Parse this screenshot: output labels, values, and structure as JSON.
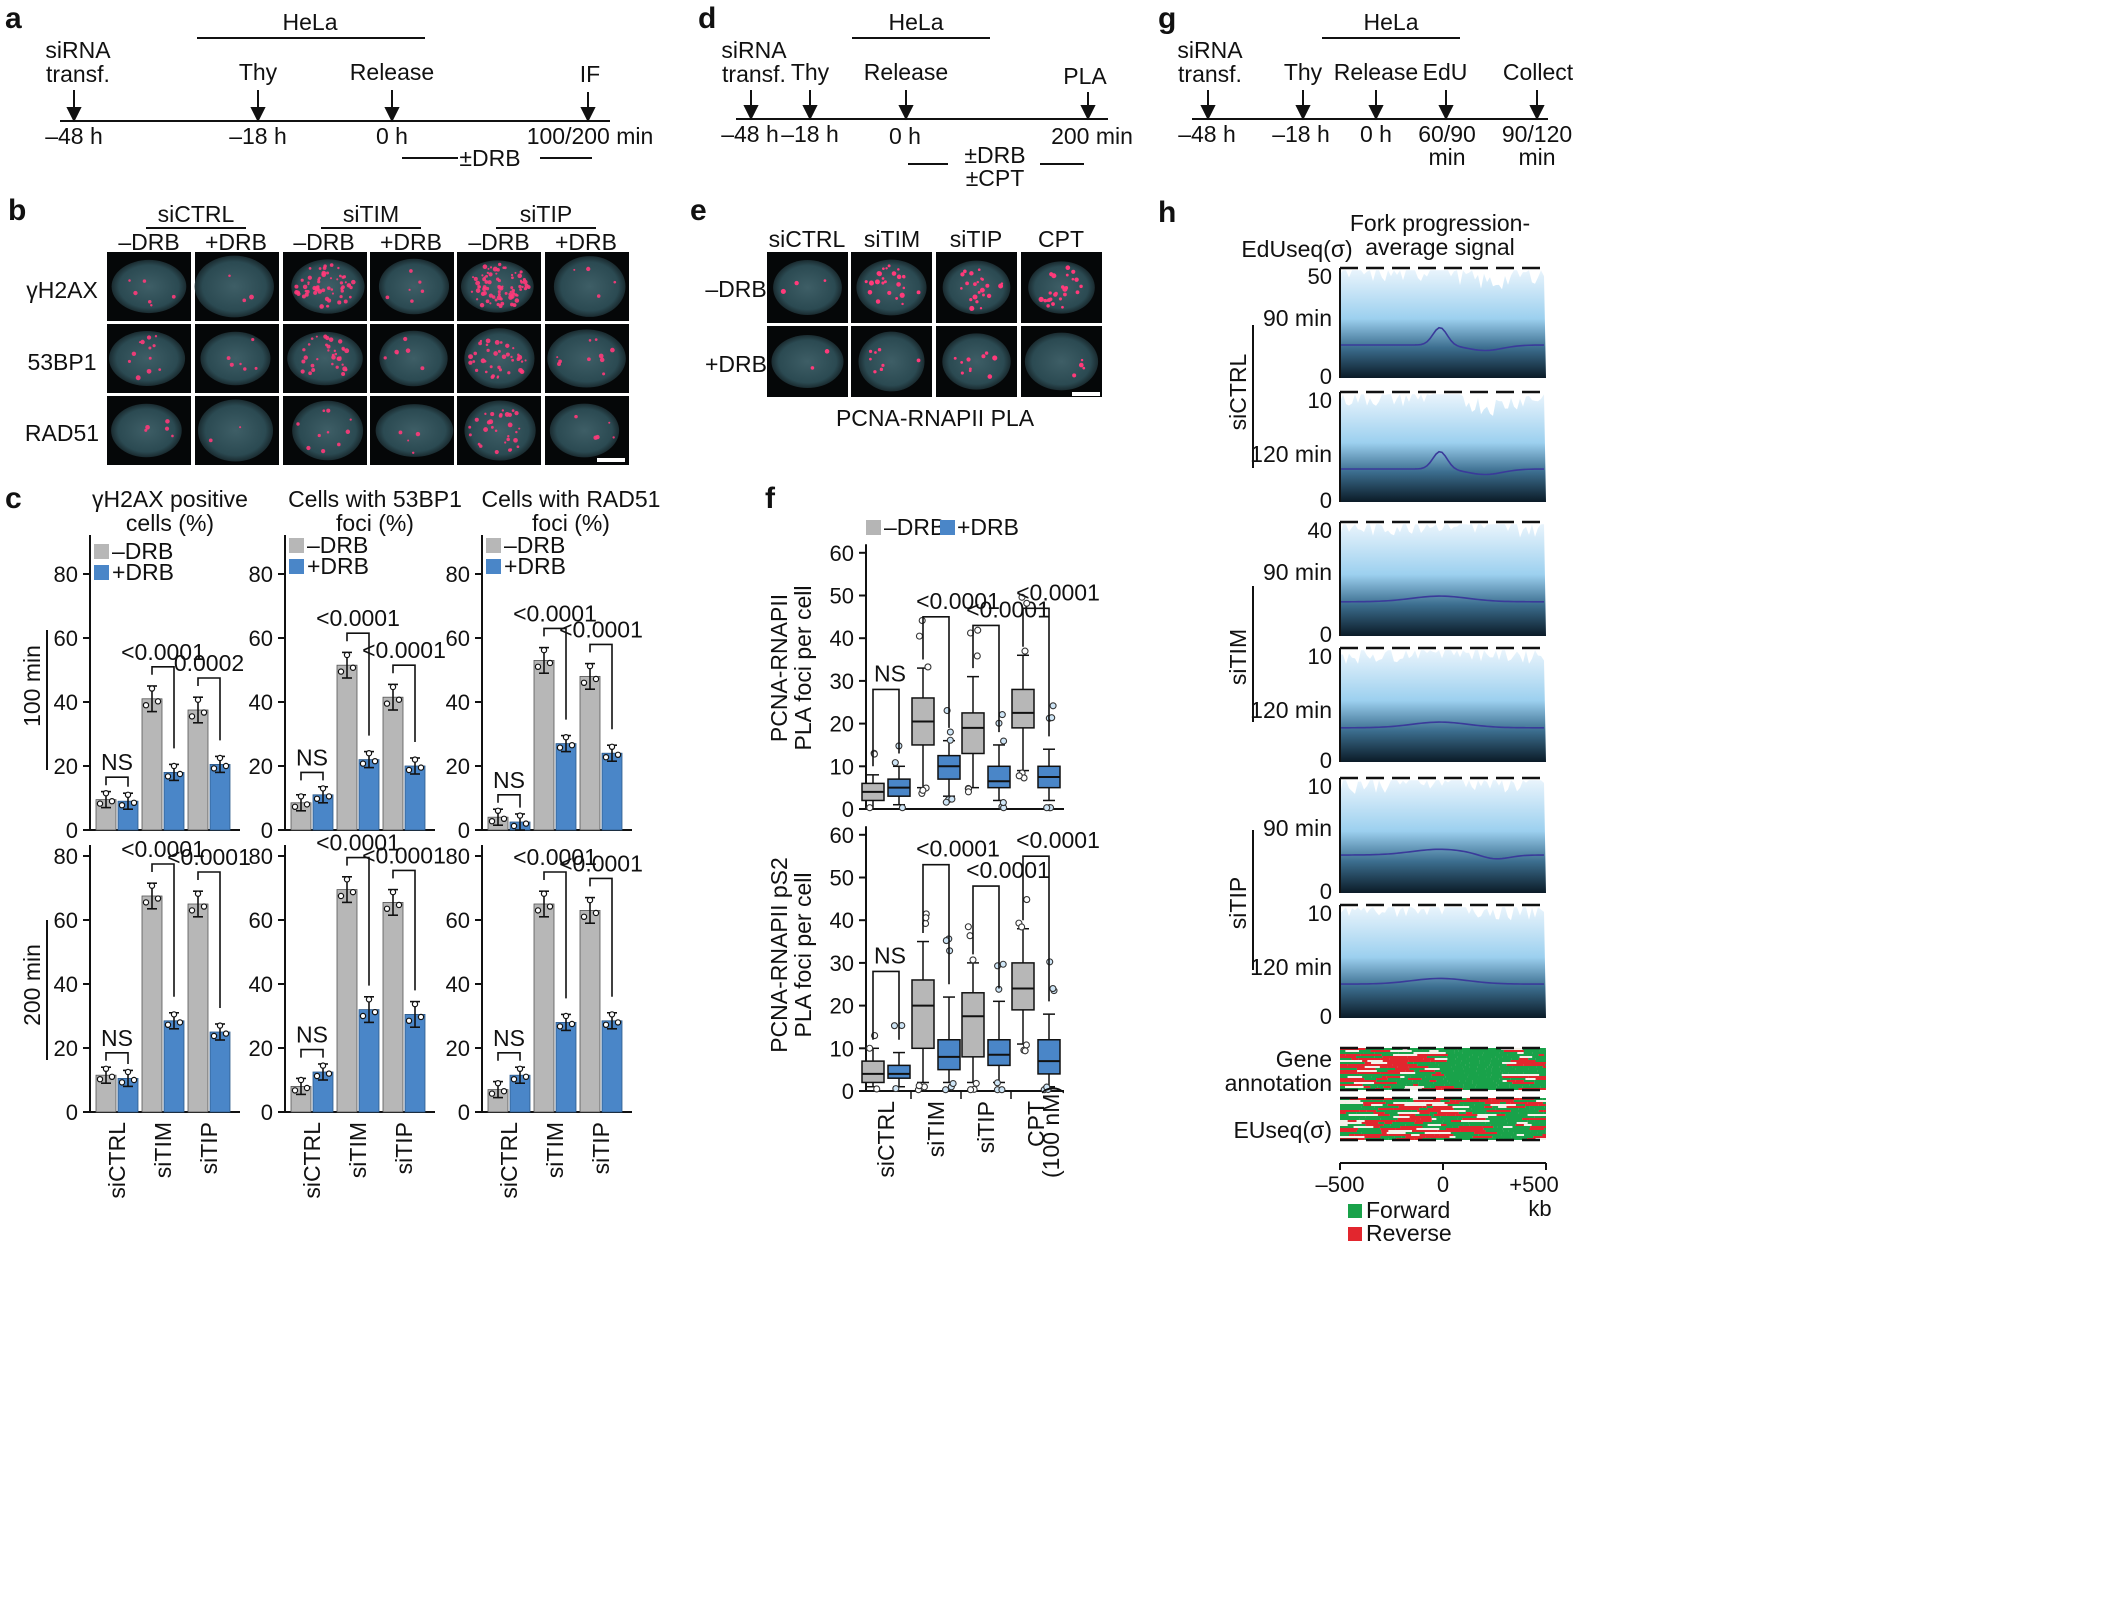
{
  "panels": {
    "a": {
      "letter": "a",
      "cell_line": "HeLa",
      "events": [
        "siRNA",
        "transf.",
        "Thy",
        "Release",
        "IF"
      ],
      "times": [
        "–48 h",
        "–18 h",
        "0 h",
        "100/200 min"
      ],
      "treatment": "±DRB"
    },
    "b": {
      "letter": "b",
      "groups": [
        "siCTRL",
        "siTIM",
        "siTIP"
      ],
      "conditions": [
        "–DRB",
        "+DRB",
        "–DRB",
        "+DRB",
        "–DRB",
        "+DRB"
      ],
      "rows": [
        "γH2AX",
        "53BP1",
        "RAD51"
      ]
    },
    "c": {
      "letter": "c",
      "col_titles": [
        [
          "γH2AX positive",
          "cells (%)"
        ],
        [
          "Cells with 53BP1",
          "foci (%)"
        ],
        [
          "Cells with RAD51",
          "foci (%)"
        ]
      ],
      "row_labels": [
        "100 min",
        "200 min"
      ],
      "legend": [
        "–DRB",
        "+DRB"
      ],
      "categories": [
        "siCTRL",
        "siTIM",
        "siTIP"
      ]
    },
    "d": {
      "letter": "d",
      "cell_line": "HeLa",
      "events": [
        "siRNA",
        "transf.",
        "Thy",
        "Release",
        "PLA"
      ],
      "times": [
        "–48 h",
        "–18 h",
        "0 h",
        "200 min"
      ],
      "treatments": [
        "±DRB",
        "±CPT"
      ]
    },
    "e": {
      "letter": "e",
      "cols": [
        "siCTRL",
        "siTIM",
        "siTIP",
        "CPT"
      ],
      "rows": [
        "–DRB",
        "+DRB"
      ],
      "caption": "PCNA-RNAPII PLA"
    },
    "f": {
      "letter": "f",
      "legend": [
        "–DRB",
        "+DRB"
      ],
      "ylabel_top": [
        "PCNA-RNAPII",
        "PLA foci per cell"
      ],
      "ylabel_bottom": [
        "PCNA-RNAPII pS2",
        "PLA foci per cell"
      ],
      "categories": [
        "siCTRL",
        "siTIM",
        "siTIP",
        "CPT"
      ],
      "cpt_note": "(100 nM)"
    },
    "g": {
      "letter": "g",
      "cell_line": "HeLa",
      "events": [
        "siRNA",
        "transf.",
        "Thy",
        "Release",
        "EdU",
        "Collect"
      ],
      "times": [
        "–48 h",
        "–18 h",
        "0 h",
        "60/90",
        "min",
        "90/120",
        "min"
      ]
    },
    "h": {
      "letter": "h",
      "title": [
        "Fork progression-",
        "average signal"
      ],
      "yaxis_title": "EdUseq(σ)",
      "groups": [
        "siCTRL",
        "siTIM",
        "siTIP"
      ],
      "times": [
        "90 min",
        "120 min"
      ],
      "annot_labels": [
        "Gene",
        "annotation",
        "EUseq(σ)"
      ],
      "xticks": [
        "–500",
        "0",
        "+500"
      ],
      "xunit": "kb",
      "legend": [
        "Forward",
        "Reverse"
      ],
      "colors": {
        "forward": "#19a24a",
        "reverse": "#e2262e"
      }
    }
  },
  "chart_data": [
    {
      "type": "bar",
      "title": "γH2AX positive cells (%)",
      "row": "100 min",
      "categories": [
        "siCTRL",
        "siTIM",
        "siTIP"
      ],
      "ylim": [
        0,
        90
      ],
      "series": [
        {
          "name": "–DRB",
          "values": [
            9.5,
            41,
            37.5
          ]
        },
        {
          "name": "+DRB",
          "values": [
            9,
            18,
            20.5
          ]
        }
      ],
      "annotations": [
        "NS",
        "<0.0001",
        "0.0002"
      ]
    },
    {
      "type": "bar",
      "title": "Cells with 53BP1 foci (%)",
      "row": "100 min",
      "categories": [
        "siCTRL",
        "siTIM",
        "siTIP"
      ],
      "ylim": [
        0,
        90
      ],
      "series": [
        {
          "name": "–DRB",
          "values": [
            8.5,
            51.5,
            41.5
          ]
        },
        {
          "name": "+DRB",
          "values": [
            11,
            22,
            20
          ]
        }
      ],
      "annotations": [
        "NS",
        "<0.0001",
        "<0.0001"
      ]
    },
    {
      "type": "bar",
      "title": "Cells with RAD51 foci (%)",
      "row": "100 min",
      "categories": [
        "siCTRL",
        "siTIM",
        "siTIP"
      ],
      "ylim": [
        0,
        90
      ],
      "series": [
        {
          "name": "–DRB",
          "values": [
            4,
            53,
            48
          ]
        },
        {
          "name": "+DRB",
          "values": [
            2.5,
            27,
            24
          ]
        }
      ],
      "annotations": [
        "NS",
        "<0.0001",
        "<0.0001"
      ]
    },
    {
      "type": "bar",
      "title": "γH2AX positive cells (%)",
      "row": "200 min",
      "categories": [
        "siCTRL",
        "siTIM",
        "siTIP"
      ],
      "ylim": [
        0,
        90
      ],
      "series": [
        {
          "name": "–DRB",
          "values": [
            11.5,
            67.5,
            65
          ]
        },
        {
          "name": "+DRB",
          "values": [
            10.5,
            28.5,
            25
          ]
        }
      ],
      "annotations": [
        "NS",
        "<0.0001",
        "<0.0001"
      ]
    },
    {
      "type": "bar",
      "title": "Cells with 53BP1 foci (%)",
      "row": "200 min",
      "categories": [
        "siCTRL",
        "siTIM",
        "siTIP"
      ],
      "ylim": [
        0,
        90
      ],
      "series": [
        {
          "name": "–DRB",
          "values": [
            8,
            69.5,
            65.5
          ]
        },
        {
          "name": "+DRB",
          "values": [
            12.5,
            32,
            30.5
          ]
        }
      ],
      "annotations": [
        "NS",
        "<0.0001",
        "<0.0001"
      ]
    },
    {
      "type": "bar",
      "title": "Cells with RAD51 foci (%)",
      "row": "200 min",
      "categories": [
        "siCTRL",
        "siTIM",
        "siTIP"
      ],
      "ylim": [
        0,
        90
      ],
      "series": [
        {
          "name": "–DRB",
          "values": [
            7,
            65,
            63
          ]
        },
        {
          "name": "+DRB",
          "values": [
            11.5,
            28,
            28.5
          ]
        }
      ],
      "annotations": [
        "NS",
        "<0.0001",
        "<0.0001"
      ]
    },
    {
      "type": "box",
      "title": "PCNA-RNAPII PLA foci per cell",
      "categories": [
        "siCTRL",
        "siTIM",
        "siTIP",
        "CPT"
      ],
      "ylim": [
        0,
        62
      ],
      "series": [
        {
          "name": "–DRB",
          "boxes": [
            [
              0,
              2,
              4,
              6,
              8
            ],
            [
              5,
              15,
              20.5,
              26,
              33
            ],
            [
              5,
              13,
              19,
              22.5,
              31
            ],
            [
              9,
              19,
              22.5,
              28,
              36
            ]
          ]
        },
        {
          "name": "+DRB",
          "boxes": [
            [
              1,
              3,
              5,
              7,
              10
            ],
            [
              3,
              7,
              10,
              12.5,
              16
            ],
            [
              2,
              5,
              6.5,
              10,
              15
            ],
            [
              2,
              5,
              7.5,
              10,
              14
            ]
          ]
        }
      ],
      "annotations": [
        "NS",
        "<0.0001",
        "<0.0001",
        "<0.0001"
      ]
    },
    {
      "type": "box",
      "title": "PCNA-RNAPII pS2 PLA foci per cell",
      "categories": [
        "siCTRL",
        "siTIM",
        "siTIP",
        "CPT"
      ],
      "ylim": [
        0,
        62
      ],
      "series": [
        {
          "name": "–DRB",
          "boxes": [
            [
              1,
              2,
              4,
              7,
              10
            ],
            [
              2,
              10,
              20,
              26,
              35
            ],
            [
              2,
              8,
              17.5,
              23,
              30
            ],
            [
              11,
              19,
              24,
              30,
              38
            ]
          ]
        },
        {
          "name": "+DRB",
          "boxes": [
            [
              1,
              3,
              4,
              6,
              9
            ],
            [
              2,
              5,
              8,
              12,
              22
            ],
            [
              2,
              6,
              8.5,
              12,
              21
            ],
            [
              1,
              4,
              7,
              12,
              18
            ]
          ]
        }
      ],
      "annotations": [
        "NS",
        "<0.0001",
        "<0.0001",
        "<0.0001"
      ]
    },
    {
      "type": "area",
      "title": "Fork progression-average signal",
      "x": [
        -500,
        0,
        500
      ],
      "xlabel": "kb",
      "ylabel": "EdUseq(σ)",
      "panels": [
        {
          "group": "siCTRL",
          "time": "90 min",
          "ylim": [
            0,
            50
          ]
        },
        {
          "group": "siCTRL",
          "time": "120 min",
          "ylim": [
            0,
            10
          ]
        },
        {
          "group": "siTIM",
          "time": "90 min",
          "ylim": [
            0,
            40
          ]
        },
        {
          "group": "siTIM",
          "time": "120 min",
          "ylim": [
            0,
            10
          ]
        },
        {
          "group": "siTIP",
          "time": "90 min",
          "ylim": [
            0,
            10
          ]
        },
        {
          "group": "siTIP",
          "time": "120 min",
          "ylim": [
            0,
            10
          ]
        }
      ]
    }
  ]
}
